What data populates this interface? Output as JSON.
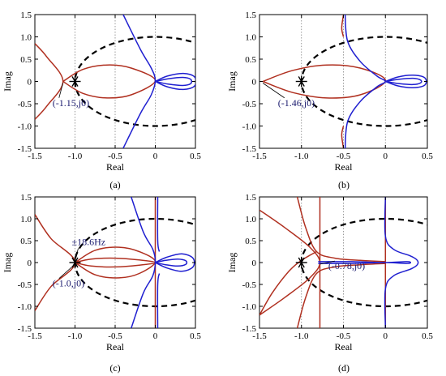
{
  "figure": {
    "y_axis_label": "Imag",
    "x_axis_label": "Real"
  },
  "colors": {
    "red_locus": "#b03020",
    "blue_locus": "#1f1fd0",
    "unit_circle": "#000000",
    "critical_point": "#000000",
    "grid": "#808080"
  },
  "chart_data": [
    {
      "type": "line",
      "panel_label": "(a)",
      "xlabel": "Real",
      "ylabel": "Imag",
      "xlim": [
        -1.5,
        0.5
      ],
      "ylim": [
        -1.5,
        1.5
      ],
      "xticks": [
        "-1.5",
        "-1.0",
        "-0.5",
        "0",
        "0.5"
      ],
      "yticks": [
        "1.5",
        "1.0",
        "0.5",
        "0",
        "-0.5",
        "-1.0",
        "-1.5"
      ],
      "grid": "vertical dotted at x = -1.0, -0.5, 0",
      "unit_circle": true,
      "critical_point": [
        -1,
        0
      ],
      "annotations": [
        {
          "text": "(-1.15,j0)",
          "point": [
            -1.15,
            0
          ],
          "text_at": [
            -1.28,
            -0.55
          ]
        }
      ],
      "series": [
        {
          "color": "red",
          "points": [
            [
              -1.5,
              0.85
            ],
            [
              -1.35,
              0.55
            ],
            [
              -1.15,
              0.0
            ],
            [
              -1.35,
              -0.55
            ],
            [
              -1.5,
              -0.85
            ]
          ]
        },
        {
          "color": "red",
          "points": [
            [
              -1.15,
              0.0
            ],
            [
              -0.9,
              0.27
            ],
            [
              -0.6,
              0.37
            ],
            [
              -0.3,
              0.3
            ],
            [
              0.0,
              0.02
            ],
            [
              -0.3,
              -0.3
            ],
            [
              -0.6,
              -0.37
            ],
            [
              -0.9,
              -0.27
            ],
            [
              -1.15,
              0.0
            ]
          ]
        },
        {
          "color": "blue",
          "points": [
            [
              -0.4,
              1.5
            ],
            [
              -0.18,
              0.7
            ],
            [
              -0.05,
              0.3
            ],
            [
              0.0,
              0.02
            ],
            [
              -0.05,
              -0.3
            ],
            [
              -0.18,
              -0.7
            ],
            [
              -0.4,
              -1.5
            ]
          ]
        },
        {
          "color": "blue",
          "points": [
            [
              0.0,
              0.0
            ],
            [
              0.15,
              0.12
            ],
            [
              0.35,
              0.18
            ],
            [
              0.49,
              0.1
            ],
            [
              0.49,
              -0.1
            ],
            [
              0.35,
              -0.18
            ],
            [
              0.15,
              -0.12
            ],
            [
              0.0,
              0.0
            ]
          ]
        },
        {
          "color": "blue",
          "points": [
            [
              0.0,
              0.0
            ],
            [
              0.16,
              0.06
            ],
            [
              0.34,
              0.09
            ],
            [
              0.44,
              0.05
            ],
            [
              0.44,
              -0.05
            ],
            [
              0.34,
              -0.09
            ],
            [
              0.16,
              -0.06
            ],
            [
              0.0,
              0.0
            ]
          ]
        }
      ]
    },
    {
      "type": "line",
      "panel_label": "(b)",
      "xlabel": "Real",
      "ylabel": "Imag",
      "xlim": [
        -1.5,
        0.5
      ],
      "ylim": [
        -1.5,
        1.5
      ],
      "xticks": [
        "-1.5",
        "-1.0",
        "-0.5",
        "0",
        "0.5"
      ],
      "yticks": [
        "1.5",
        "1.0",
        "0.5",
        "0",
        "-0.5",
        "-1.0",
        "-1.5"
      ],
      "grid": "vertical dotted at x = -1.0, -0.5, 0",
      "unit_circle": true,
      "critical_point": [
        -1,
        0
      ],
      "annotations": [
        {
          "text": "(-1.46,j0)",
          "point": [
            -1.46,
            0
          ],
          "text_at": [
            -1.28,
            -0.55
          ]
        }
      ],
      "series": [
        {
          "color": "red",
          "points": [
            [
              -1.46,
              0.0
            ],
            [
              -1.1,
              0.25
            ],
            [
              -0.7,
              0.37
            ],
            [
              -0.3,
              0.3
            ],
            [
              0.0,
              0.02
            ],
            [
              -0.3,
              -0.3
            ],
            [
              -0.7,
              -0.37
            ],
            [
              -1.1,
              -0.25
            ],
            [
              -1.46,
              0.0
            ]
          ]
        },
        {
          "color": "red",
          "points": [
            [
              -0.5,
              1.5
            ],
            [
              -0.52,
              1.2
            ],
            [
              -0.5,
              1.0
            ]
          ]
        },
        {
          "color": "red",
          "points": [
            [
              -0.5,
              -1.0
            ],
            [
              -0.52,
              -1.2
            ],
            [
              -0.5,
              -1.5
            ]
          ]
        },
        {
          "color": "blue",
          "points": [
            [
              -0.48,
              1.5
            ],
            [
              -0.45,
              0.9
            ],
            [
              -0.3,
              0.45
            ],
            [
              -0.1,
              0.12
            ],
            [
              0.0,
              0.0
            ],
            [
              -0.1,
              -0.12
            ],
            [
              -0.3,
              -0.45
            ],
            [
              -0.45,
              -0.9
            ],
            [
              -0.48,
              -1.5
            ]
          ]
        },
        {
          "color": "blue",
          "points": [
            [
              0.0,
              0.0
            ],
            [
              0.15,
              0.1
            ],
            [
              0.33,
              0.14
            ],
            [
              0.47,
              0.08
            ],
            [
              0.47,
              -0.08
            ],
            [
              0.33,
              -0.14
            ],
            [
              0.15,
              -0.1
            ],
            [
              0.0,
              0.0
            ]
          ]
        },
        {
          "color": "blue",
          "points": [
            [
              0.0,
              0.0
            ],
            [
              0.17,
              0.05
            ],
            [
              0.33,
              0.07
            ],
            [
              0.42,
              0.03
            ],
            [
              0.42,
              -0.03
            ],
            [
              0.33,
              -0.07
            ],
            [
              0.17,
              -0.05
            ],
            [
              0.0,
              0.0
            ]
          ]
        }
      ]
    },
    {
      "type": "line",
      "panel_label": "(c)",
      "xlabel": "Real",
      "ylabel": "Imag",
      "xlim": [
        -1.5,
        0.5
      ],
      "ylim": [
        -1.5,
        1.5
      ],
      "xticks": [
        "-1.5",
        "-1.0",
        "-0.5",
        "0",
        "0.5"
      ],
      "yticks": [
        "1.5",
        "1.0",
        "0.5",
        "0",
        "-0.5",
        "-1.0",
        "-1.5"
      ],
      "grid": "vertical dotted at x = -1.0, -0.5, 0",
      "unit_circle": true,
      "critical_point": [
        -1,
        0
      ],
      "annotations": [
        {
          "text": "±18.6Hz",
          "point": [
            -1.0,
            0.0
          ],
          "text_at": [
            -1.04,
            0.4
          ]
        },
        {
          "text": "(-1.0,j0)",
          "point": [
            -1.0,
            0.0
          ],
          "text_at": [
            -1.28,
            -0.55
          ]
        }
      ],
      "series": [
        {
          "color": "red",
          "points": [
            [
              -1.5,
              1.1
            ],
            [
              -1.3,
              0.55
            ],
            [
              -1.0,
              0.0
            ],
            [
              -1.3,
              -0.55
            ],
            [
              -1.5,
              -1.1
            ]
          ]
        },
        {
          "color": "red",
          "points": [
            [
              -1.0,
              0.0
            ],
            [
              -0.75,
              0.28
            ],
            [
              -0.45,
              0.35
            ],
            [
              -0.2,
              0.25
            ],
            [
              0.0,
              0.02
            ],
            [
              -0.2,
              -0.25
            ],
            [
              -0.45,
              -0.35
            ],
            [
              -0.75,
              -0.28
            ],
            [
              -1.0,
              0.0
            ]
          ]
        },
        {
          "color": "red",
          "points": [
            [
              -1.0,
              0.0
            ],
            [
              -0.8,
              0.08
            ],
            [
              -0.5,
              0.1
            ],
            [
              -0.2,
              0.06
            ],
            [
              0.0,
              0.0
            ],
            [
              -0.2,
              -0.06
            ],
            [
              -0.5,
              -0.1
            ],
            [
              -0.8,
              -0.08
            ],
            [
              -1.0,
              0.0
            ]
          ]
        },
        {
          "color": "red",
          "points": [
            [
              0.0,
              1.5
            ],
            [
              0.0,
              -1.5
            ]
          ]
        },
        {
          "color": "blue",
          "points": [
            [
              -0.3,
              1.5
            ],
            [
              -0.15,
              0.7
            ],
            [
              -0.03,
              0.3
            ],
            [
              0.0,
              0.02
            ],
            [
              -0.03,
              -0.3
            ],
            [
              -0.15,
              -0.7
            ],
            [
              -0.3,
              -1.5
            ]
          ]
        },
        {
          "color": "blue",
          "points": [
            [
              0.0,
              0.0
            ],
            [
              0.14,
              0.12
            ],
            [
              0.33,
              0.2
            ],
            [
              0.47,
              0.1
            ],
            [
              0.47,
              -0.1
            ],
            [
              0.33,
              -0.2
            ],
            [
              0.14,
              -0.12
            ],
            [
              0.0,
              0.0
            ]
          ]
        },
        {
          "color": "blue",
          "points": [
            [
              0.0,
              0.0
            ],
            [
              0.13,
              0.05
            ],
            [
              0.28,
              0.08
            ],
            [
              0.38,
              0.04
            ],
            [
              0.38,
              -0.04
            ],
            [
              0.28,
              -0.08
            ],
            [
              0.13,
              -0.05
            ],
            [
              0.0,
              0.0
            ]
          ]
        },
        {
          "color": "blue",
          "points": [
            [
              0.03,
              1.5
            ],
            [
              0.03,
              0.5
            ],
            [
              0.05,
              0.25
            ]
          ]
        },
        {
          "color": "blue",
          "points": [
            [
              0.05,
              -0.25
            ],
            [
              0.03,
              -0.5
            ],
            [
              0.03,
              -1.5
            ]
          ]
        }
      ]
    },
    {
      "type": "line",
      "panel_label": "(d)",
      "xlabel": "Real",
      "ylabel": "Imag",
      "xlim": [
        -1.5,
        0.5
      ],
      "ylim": [
        -1.5,
        1.5
      ],
      "xticks": [
        "-1.5",
        "-1.0",
        "-0.5",
        "0",
        "0.5"
      ],
      "yticks": [
        "1.5",
        "1.0",
        "0.5",
        "0",
        "-0.5",
        "-1.0",
        "-1.5"
      ],
      "grid": "vertical dotted at x = -1.0, -0.5, 0",
      "unit_circle": true,
      "critical_point": [
        -1,
        0
      ],
      "annotations": [
        {
          "text": "(-0.78,j0)",
          "point": [
            -0.78,
            0.0
          ],
          "text_at": [
            -0.68,
            -0.15
          ]
        }
      ],
      "series": [
        {
          "color": "red",
          "points": [
            [
              -1.5,
              1.2
            ],
            [
              -1.2,
              0.8
            ],
            [
              -0.9,
              0.35
            ],
            [
              -0.78,
              0.0
            ],
            [
              -0.9,
              -0.35
            ],
            [
              -1.2,
              -0.8
            ],
            [
              -1.5,
              -1.2
            ]
          ]
        },
        {
          "color": "red",
          "points": [
            [
              -1.5,
              -1.2
            ],
            [
              -1.35,
              -0.7
            ],
            [
              -1.15,
              -0.2
            ],
            [
              -1.0,
              0.05
            ],
            [
              -0.82,
              0.25
            ]
          ]
        },
        {
          "color": "red",
          "points": [
            [
              -1.05,
              1.5
            ],
            [
              -0.95,
              0.8
            ],
            [
              -0.82,
              0.25
            ],
            [
              -0.6,
              0.1
            ],
            [
              -0.3,
              0.05
            ],
            [
              0.0,
              0.02
            ]
          ]
        },
        {
          "color": "red",
          "points": [
            [
              -1.05,
              -1.5
            ],
            [
              -0.95,
              -0.8
            ],
            [
              -0.82,
              -0.25
            ],
            [
              -0.6,
              -0.1
            ],
            [
              -0.3,
              -0.05
            ],
            [
              0.0,
              -0.02
            ]
          ]
        },
        {
          "color": "red",
          "points": [
            [
              -0.78,
              1.5
            ],
            [
              -0.78,
              -1.5
            ]
          ]
        },
        {
          "color": "red",
          "points": [
            [
              0.0,
              1.5
            ],
            [
              0.0,
              -1.5
            ]
          ]
        },
        {
          "color": "blue",
          "points": [
            [
              0.0,
              1.5
            ],
            [
              0.0,
              0.6
            ],
            [
              0.1,
              0.3
            ],
            [
              0.3,
              0.15
            ],
            [
              0.38,
              0.05
            ],
            [
              0.38,
              -0.05
            ],
            [
              0.3,
              -0.15
            ],
            [
              0.1,
              -0.3
            ],
            [
              0.0,
              -0.6
            ],
            [
              0.0,
              -1.5
            ]
          ]
        },
        {
          "color": "blue",
          "points": [
            [
              -0.8,
              0.02
            ],
            [
              -0.4,
              0.02
            ],
            [
              0.0,
              0.0
            ],
            [
              0.25,
              0.02
            ],
            [
              0.3,
              0.0
            ],
            [
              0.25,
              -0.02
            ],
            [
              0.0,
              0.0
            ],
            [
              -0.4,
              -0.02
            ],
            [
              -0.8,
              -0.02
            ]
          ]
        }
      ]
    }
  ]
}
